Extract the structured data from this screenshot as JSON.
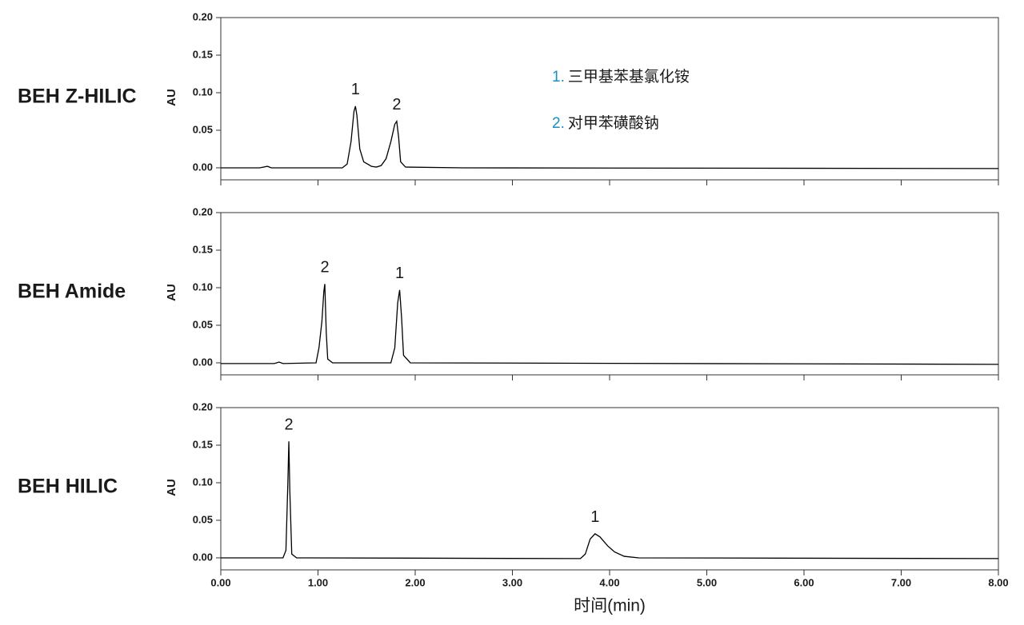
{
  "chart_data": [
    {
      "type": "line",
      "title": "BEH Z-HILIC",
      "ylabel": "AU",
      "color": "#000000",
      "x": [
        0,
        0.4,
        0.48,
        0.52,
        1.25,
        1.3,
        1.34,
        1.37,
        1.385,
        1.4,
        1.43,
        1.47,
        1.55,
        1.6,
        1.65,
        1.7,
        1.75,
        1.79,
        1.81,
        1.83,
        1.85,
        1.9,
        2.5,
        8
      ],
      "values": [
        0,
        0,
        0.002,
        0,
        0,
        0.005,
        0.035,
        0.075,
        0.082,
        0.07,
        0.025,
        0.008,
        0.002,
        0.001,
        0.003,
        0.012,
        0.035,
        0.058,
        0.062,
        0.04,
        0.008,
        0.001,
        0,
        -0.001
      ],
      "xlim": [
        0,
        8
      ],
      "xticks": [
        {
          "value": 0,
          "label": "0.00"
        },
        {
          "value": 1,
          "label": "1.00"
        },
        {
          "value": 2,
          "label": "2.00"
        },
        {
          "value": 3,
          "label": "3.00"
        },
        {
          "value": 4,
          "label": "4.00"
        },
        {
          "value": 5,
          "label": "5.00"
        },
        {
          "value": 6,
          "label": "6.00"
        },
        {
          "value": 7,
          "label": "7.00"
        },
        {
          "value": 8,
          "label": "8.00"
        }
      ],
      "ylim": [
        -0.016,
        0.2
      ],
      "yticks": [
        {
          "value": 0,
          "label": "0.00"
        },
        {
          "value": 0.05,
          "label": "0.05"
        },
        {
          "value": 0.1,
          "label": "0.10"
        },
        {
          "value": 0.15,
          "label": "0.15"
        },
        {
          "value": 0.2,
          "label": "0.20"
        }
      ],
      "annotations": [
        {
          "text": "1",
          "x": 1.385,
          "y": 0.082
        },
        {
          "text": "2",
          "x": 1.81,
          "y": 0.062
        }
      ],
      "legend_notes": [
        {
          "number": "1.",
          "text": "三甲基苯基氯化铵"
        },
        {
          "number": "2.",
          "text": "对甲苯磺酸钠"
        }
      ]
    },
    {
      "type": "line",
      "title": "BEH Amide",
      "ylabel": "AU",
      "color": "#000000",
      "x": [
        0,
        0.55,
        0.6,
        0.64,
        0.98,
        1.01,
        1.04,
        1.06,
        1.07,
        1.085,
        1.1,
        1.15,
        1.75,
        1.79,
        1.82,
        1.84,
        1.86,
        1.88,
        1.95,
        8
      ],
      "values": [
        -0.001,
        -0.001,
        0.001,
        -0.001,
        0,
        0.02,
        0.055,
        0.095,
        0.105,
        0.04,
        0.005,
        0,
        0,
        0.02,
        0.08,
        0.097,
        0.06,
        0.01,
        0,
        -0.002
      ],
      "xlim": [
        0,
        8
      ],
      "xticks": [
        {
          "value": 0,
          "label": "0.00"
        },
        {
          "value": 1,
          "label": "1.00"
        },
        {
          "value": 2,
          "label": "2.00"
        },
        {
          "value": 3,
          "label": "3.00"
        },
        {
          "value": 4,
          "label": "4.00"
        },
        {
          "value": 5,
          "label": "5.00"
        },
        {
          "value": 6,
          "label": "6.00"
        },
        {
          "value": 7,
          "label": "7.00"
        },
        {
          "value": 8,
          "label": "8.00"
        }
      ],
      "ylim": [
        -0.016,
        0.2
      ],
      "yticks": [
        {
          "value": 0,
          "label": "0.00"
        },
        {
          "value": 0.05,
          "label": "0.05"
        },
        {
          "value": 0.1,
          "label": "0.10"
        },
        {
          "value": 0.15,
          "label": "0.15"
        },
        {
          "value": 0.2,
          "label": "0.20"
        }
      ],
      "annotations": [
        {
          "text": "2",
          "x": 1.07,
          "y": 0.105
        },
        {
          "text": "1",
          "x": 1.84,
          "y": 0.097
        }
      ]
    },
    {
      "type": "line",
      "title": "BEH HILIC",
      "ylabel": "AU",
      "xlabel": "时间(min)",
      "color": "#000000",
      "x": [
        0,
        0.64,
        0.67,
        0.69,
        0.7,
        0.71,
        0.73,
        0.78,
        3.7,
        3.75,
        3.8,
        3.85,
        3.9,
        3.98,
        4.05,
        4.15,
        4.3,
        8
      ],
      "values": [
        0,
        0,
        0.01,
        0.1,
        0.155,
        0.09,
        0.005,
        0,
        -0.001,
        0.005,
        0.025,
        0.032,
        0.028,
        0.016,
        0.008,
        0.002,
        0,
        -0.001
      ],
      "xlim": [
        0,
        8
      ],
      "xticks": [
        {
          "value": 0,
          "label": "0.00"
        },
        {
          "value": 1,
          "label": "1.00"
        },
        {
          "value": 2,
          "label": "2.00"
        },
        {
          "value": 3,
          "label": "3.00"
        },
        {
          "value": 4,
          "label": "4.00"
        },
        {
          "value": 5,
          "label": "5.00"
        },
        {
          "value": 6,
          "label": "6.00"
        },
        {
          "value": 7,
          "label": "7.00"
        },
        {
          "value": 8,
          "label": "8.00"
        }
      ],
      "ylim": [
        -0.016,
        0.2
      ],
      "yticks": [
        {
          "value": 0,
          "label": "0.00"
        },
        {
          "value": 0.05,
          "label": "0.05"
        },
        {
          "value": 0.1,
          "label": "0.10"
        },
        {
          "value": 0.15,
          "label": "0.15"
        },
        {
          "value": 0.2,
          "label": "0.20"
        }
      ],
      "annotations": [
        {
          "text": "2",
          "x": 0.7,
          "y": 0.155
        },
        {
          "text": "1",
          "x": 3.85,
          "y": 0.032
        }
      ]
    }
  ]
}
